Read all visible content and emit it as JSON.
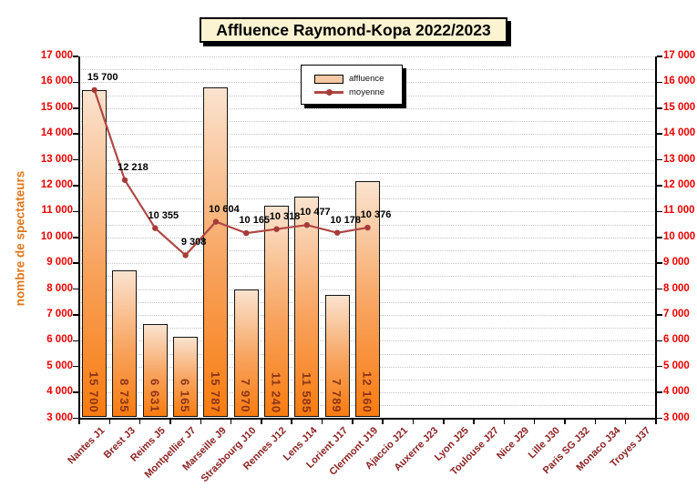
{
  "title": "Affluence Raymond-Kopa 2022/2023",
  "y_axis_title": "nombre de spectateurs",
  "legend": {
    "affluence_label": "affluence",
    "moyenne_label": "moyenne"
  },
  "colors": {
    "bar_gradient_top": "#FAE3CF",
    "bar_gradient_bottom": "#F87C10",
    "bar_border": "#141414",
    "line": "#B04845",
    "marker": "#A63B38",
    "y_tick_label": "#EE0000",
    "x_tick_label": "#8B2222",
    "bar_value_label": "#8C3417",
    "y_axis_title": "#E0761A",
    "title_background": "#FCF3D1",
    "gridline": "#C4C4C4",
    "legend_swatch": "#F5C9A4"
  },
  "chart_data": {
    "type": "bar",
    "title": "Affluence Raymond-Kopa 2022/2023",
    "ylabel": "nombre de spectateurs",
    "xlabel": "",
    "ylim": [
      3000,
      17000
    ],
    "ytick_interval": 1000,
    "minor_grid_interval": 500,
    "grid": true,
    "legend_position": "top-center",
    "categories": [
      "Nantes J1",
      "Brest J3",
      "Reims J5",
      "Montpellier J7",
      "Marseille J9",
      "Strasbourg J10",
      "Rennes J12",
      "Lens J14",
      "Lorient J17",
      "Clermont J19",
      "Ajaccio J21",
      "Auxerre J23",
      "Lyon J25",
      "Toulouse J27",
      "Nice J29",
      "Lille J30",
      "Paris SG J32",
      "Monaco J34",
      "Troyes J37"
    ],
    "series": [
      {
        "name": "affluence",
        "type": "bar",
        "values": [
          15700,
          8735,
          6631,
          6165,
          15787,
          7970,
          11240,
          11585,
          7789,
          12160
        ]
      },
      {
        "name": "moyenne",
        "type": "line",
        "values": [
          15700,
          12218,
          10355,
          9308,
          10604,
          10165,
          10318,
          10477,
          10178,
          10376
        ]
      }
    ]
  }
}
